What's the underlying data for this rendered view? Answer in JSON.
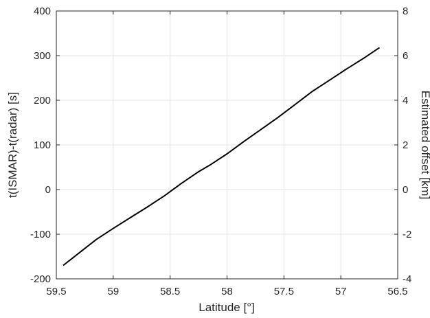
{
  "chart_data": {
    "type": "line",
    "xlabel": "Latitude [°]",
    "ylabel": "t(ISMAR)-t(radar) [s]",
    "ylabel_right": "Estimated offset [km]",
    "xlim": [
      59.5,
      56.5
    ],
    "x_reversed": true,
    "ylim": [
      -200,
      400
    ],
    "ylim_right": [
      -4,
      8
    ],
    "grid": true,
    "x_ticks": [
      59.5,
      59,
      58.5,
      58,
      57.5,
      57,
      56.5
    ],
    "x_tick_labels": [
      "59.5",
      "59",
      "58.5",
      "58",
      "57.5",
      "57",
      "56.5"
    ],
    "y_ticks": [
      -200,
      -100,
      0,
      100,
      200,
      300,
      400
    ],
    "y_tick_labels": [
      "-200",
      "-100",
      "0",
      "100",
      "200",
      "300",
      "400"
    ],
    "y_right_ticks": [
      -4,
      -2,
      0,
      2,
      4,
      6,
      8
    ],
    "y_right_tick_labels": [
      "-4",
      "-2",
      "0",
      "2",
      "4",
      "6",
      "8"
    ],
    "series": [
      {
        "color": "#000000",
        "x": [
          59.44,
          59.3,
          59.15,
          59.0,
          58.85,
          58.7,
          58.55,
          58.4,
          58.25,
          58.15,
          58.0,
          57.85,
          57.7,
          57.55,
          57.4,
          57.25,
          57.1,
          56.95,
          56.8,
          56.66
        ],
        "y": [
          -170,
          -142,
          -112,
          -87,
          -63,
          -39,
          -14,
          14,
          40,
          55,
          80,
          108,
          135,
          162,
          191,
          220,
          245,
          270,
          294,
          318
        ]
      }
    ]
  }
}
